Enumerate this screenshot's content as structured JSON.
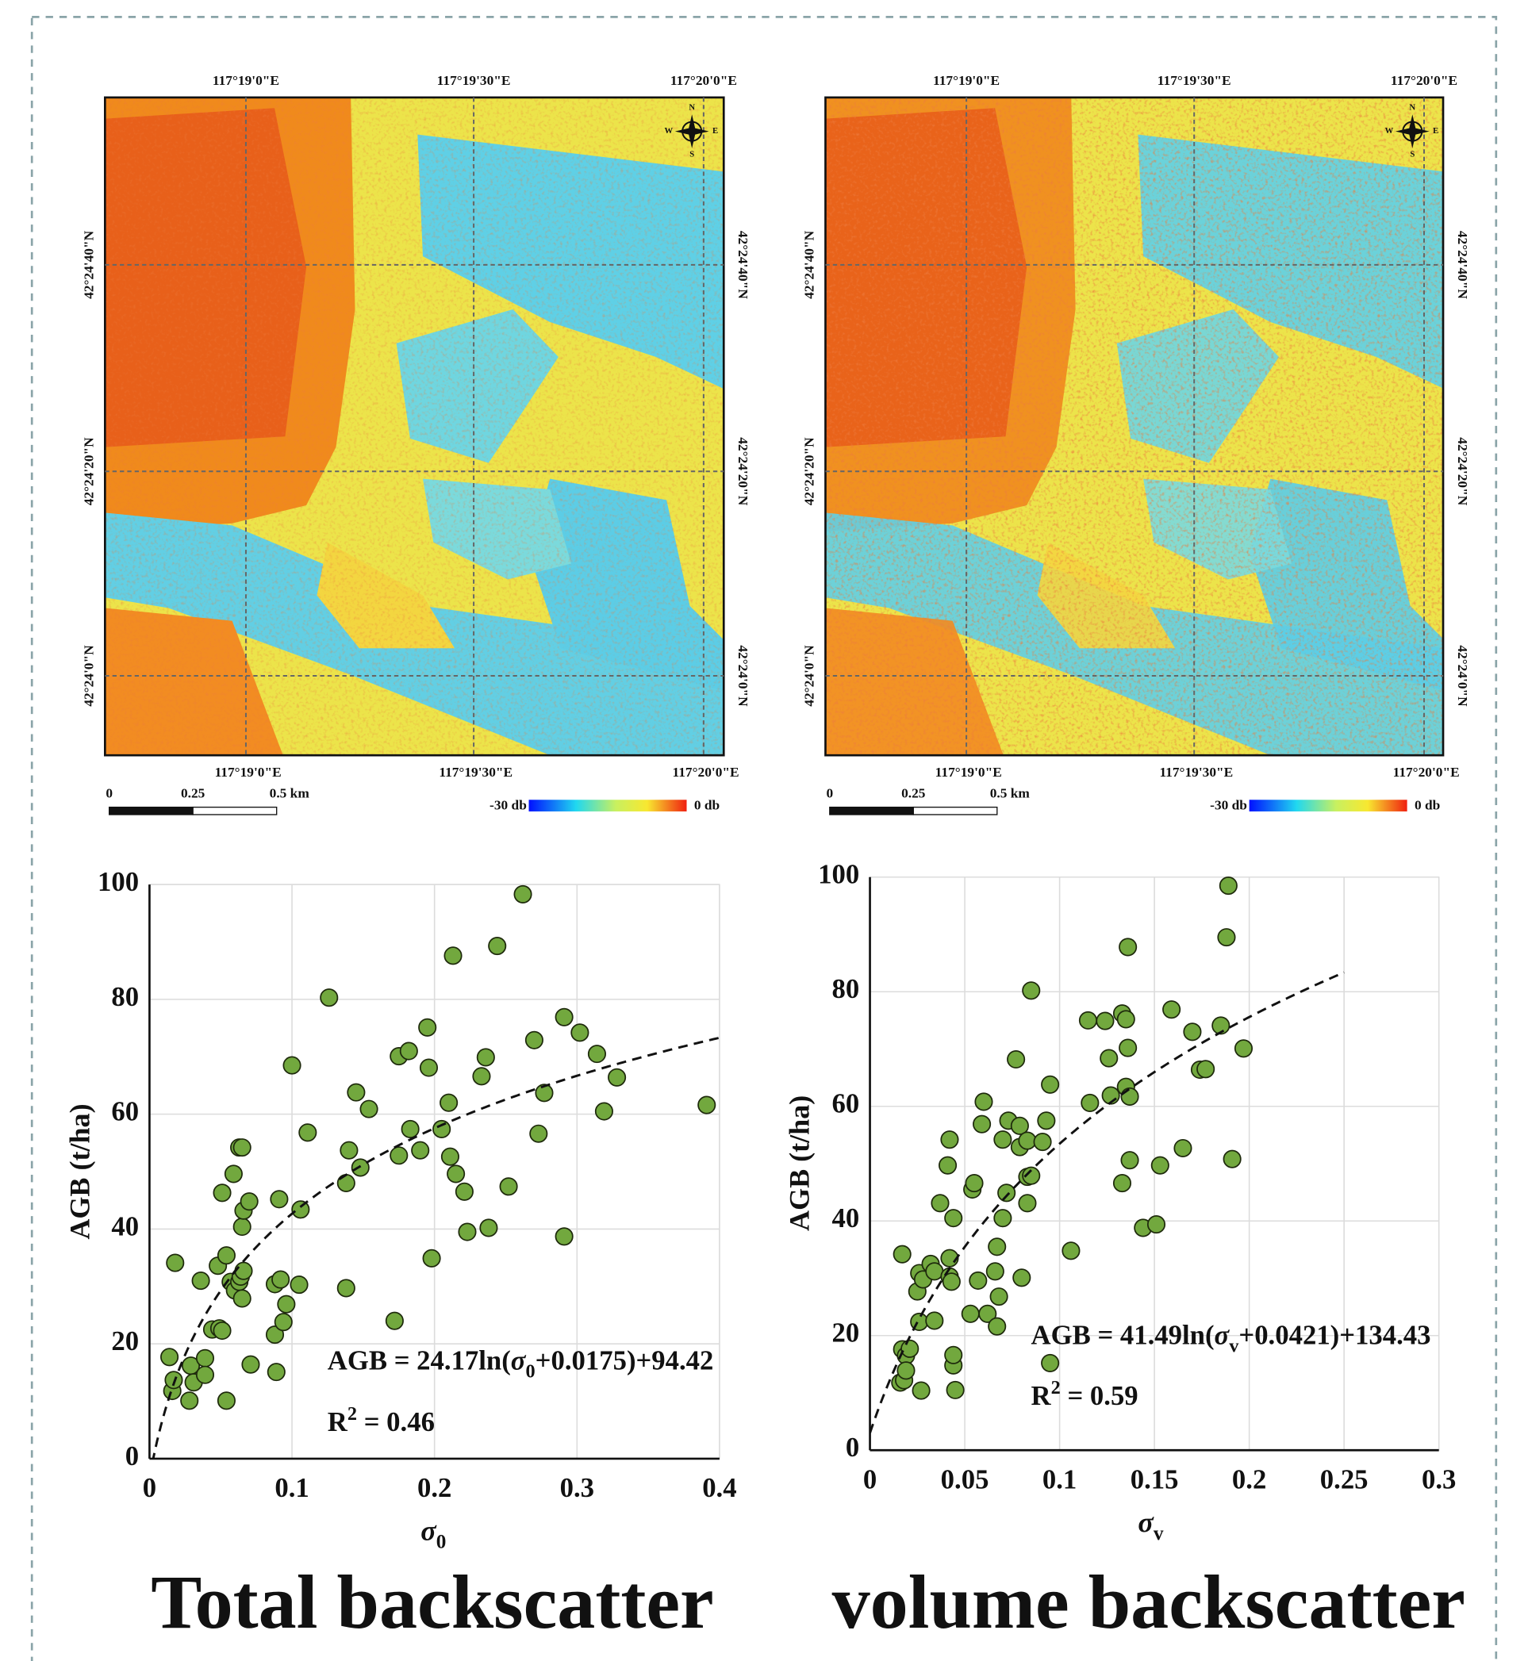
{
  "chart_data": [
    {
      "type": "scatter",
      "xlabel": [
        "σ",
        "0"
      ],
      "ylabel": "AGB (t/ha)",
      "color": "#72a83e",
      "grid": true,
      "xlim": [
        0,
        0.4
      ],
      "ylim": [
        0,
        100
      ],
      "xticks": [
        0,
        0.1,
        0.2,
        0.3,
        0.4
      ],
      "yticks": [
        0,
        20,
        40,
        60,
        80,
        100
      ],
      "fit": {
        "a": 24.17,
        "b": 0.0175,
        "c": 94.42,
        "xlim": [
          0,
          0.4
        ]
      },
      "fit_label": [
        "AGB = 24.17ln(",
        "σ",
        "0",
        "+0.0175)+94.42"
      ],
      "r2_label": [
        "R",
        "2",
        " = 0.46"
      ],
      "x": [
        0.014,
        0.016,
        0.017,
        0.018,
        0.028,
        0.029,
        0.031,
        0.036,
        0.039,
        0.039,
        0.044,
        0.048,
        0.049,
        0.051,
        0.051,
        0.054,
        0.054,
        0.057,
        0.059,
        0.06,
        0.063,
        0.063,
        0.064,
        0.065,
        0.065,
        0.065,
        0.066,
        0.066,
        0.07,
        0.071,
        0.088,
        0.088,
        0.089,
        0.091,
        0.092,
        0.094,
        0.096,
        0.1,
        0.105,
        0.106,
        0.111,
        0.126,
        0.138,
        0.138,
        0.14,
        0.145,
        0.148,
        0.154,
        0.172,
        0.175,
        0.175,
        0.182,
        0.183,
        0.19,
        0.195,
        0.196,
        0.198,
        0.205,
        0.21,
        0.211,
        0.213,
        0.215,
        0.221,
        0.223,
        0.233,
        0.236,
        0.238,
        0.244,
        0.252,
        0.262,
        0.27,
        0.273,
        0.277,
        0.291,
        0.291,
        0.302,
        0.314,
        0.319,
        0.328,
        0.391
      ],
      "values": [
        17.7,
        11.8,
        13.7,
        34.1,
        10.1,
        16.2,
        13.3,
        31.0,
        17.5,
        14.6,
        22.5,
        33.6,
        22.7,
        22.3,
        46.3,
        10.1,
        35.4,
        30.8,
        49.6,
        29.3,
        54.2,
        30.8,
        31.7,
        54.2,
        40.4,
        27.9,
        43.2,
        32.7,
        44.8,
        16.4,
        21.6,
        30.4,
        15.1,
        45.2,
        31.2,
        23.8,
        26.9,
        68.5,
        30.3,
        43.4,
        56.8,
        80.3,
        29.7,
        48.0,
        53.7,
        63.8,
        50.7,
        60.9,
        24.0,
        70.1,
        52.8,
        71.0,
        57.4,
        53.7,
        75.1,
        68.1,
        34.9,
        57.4,
        62.0,
        52.6,
        87.6,
        49.6,
        46.5,
        39.5,
        66.6,
        69.9,
        40.2,
        89.3,
        47.4,
        98.3,
        72.9,
        56.6,
        63.7,
        38.7,
        76.9,
        74.2,
        70.5,
        60.5,
        66.4,
        61.6
      ]
    },
    {
      "type": "scatter",
      "xlabel": [
        "σ",
        "v"
      ],
      "ylabel": "AGB (t/ha)",
      "color": "#72a83e",
      "grid": true,
      "xlim": [
        0,
        0.3
      ],
      "ylim": [
        0,
        100
      ],
      "xticks": [
        0,
        0.05,
        0.1,
        0.15,
        0.2,
        0.25,
        0.3
      ],
      "yticks": [
        0,
        20,
        40,
        60,
        80,
        100
      ],
      "fit": {
        "a": 41.49,
        "b": 0.0421,
        "c": 134.43,
        "xlim": [
          0,
          0.25
        ]
      },
      "fit_label": [
        "AGB = 41.49ln(",
        "σ",
        "v",
        "+0.0421)+134.43"
      ],
      "r2_label": [
        "R",
        "2",
        " = 0.59"
      ],
      "x": [
        0.016,
        0.017,
        0.017,
        0.018,
        0.019,
        0.019,
        0.021,
        0.025,
        0.026,
        0.026,
        0.027,
        0.028,
        0.032,
        0.034,
        0.034,
        0.037,
        0.041,
        0.042,
        0.042,
        0.042,
        0.043,
        0.044,
        0.044,
        0.044,
        0.045,
        0.053,
        0.054,
        0.055,
        0.057,
        0.059,
        0.06,
        0.062,
        0.066,
        0.067,
        0.067,
        0.068,
        0.07,
        0.07,
        0.072,
        0.073,
        0.077,
        0.079,
        0.079,
        0.08,
        0.083,
        0.083,
        0.083,
        0.085,
        0.085,
        0.091,
        0.093,
        0.095,
        0.095,
        0.106,
        0.115,
        0.116,
        0.124,
        0.126,
        0.127,
        0.133,
        0.133,
        0.135,
        0.135,
        0.136,
        0.137,
        0.137,
        0.136,
        0.144,
        0.151,
        0.153,
        0.159,
        0.165,
        0.17,
        0.174,
        0.177,
        0.185,
        0.188,
        0.189,
        0.191,
        0.197
      ],
      "values": [
        11.8,
        34.2,
        17.6,
        12.2,
        16.5,
        13.9,
        17.7,
        27.7,
        30.9,
        22.4,
        10.4,
        29.8,
        32.5,
        22.6,
        31.2,
        43.1,
        49.7,
        30.3,
        33.5,
        54.2,
        29.4,
        40.5,
        14.8,
        16.6,
        10.5,
        23.8,
        45.5,
        46.6,
        29.6,
        56.9,
        60.8,
        23.8,
        31.2,
        21.6,
        35.5,
        26.8,
        54.2,
        40.5,
        44.9,
        57.5,
        68.2,
        52.9,
        56.6,
        30.1,
        43.1,
        47.7,
        54.0,
        80.2,
        47.9,
        53.8,
        57.5,
        63.8,
        15.2,
        34.8,
        75.0,
        60.6,
        74.9,
        68.4,
        61.9,
        46.6,
        76.2,
        63.4,
        75.2,
        70.2,
        50.6,
        61.7,
        87.8,
        38.8,
        39.4,
        49.7,
        76.9,
        52.7,
        73.0,
        66.4,
        66.5,
        74.1,
        89.5,
        98.5,
        50.8,
        70.1
      ]
    }
  ],
  "maps": [
    {
      "lon_labels": [
        "117°19'0\"E",
        "117°19'30\"E",
        "117°20'0\"E"
      ],
      "lat_labels": [
        "42°24'40\"N",
        "42°24'20\"N",
        "42°24'0\"N"
      ],
      "scale_labels": [
        "0",
        "0.25",
        "0.5 km"
      ],
      "colorbar_labels": [
        "-30 db",
        "0 db"
      ],
      "compass": [
        "N",
        "E",
        "S",
        "W"
      ]
    },
    {
      "lon_labels": [
        "117°19'0\"E",
        "117°19'30\"E",
        "117°20'0\"E"
      ],
      "lat_labels": [
        "42°24'40\"N",
        "42°24'20\"N",
        "42°24'0\"N"
      ],
      "scale_labels": [
        "0",
        "0.25",
        "0.5 km"
      ],
      "colorbar_labels": [
        "-30 db",
        "0 db"
      ],
      "compass": [
        "N",
        "E",
        "S",
        "W"
      ]
    }
  ],
  "panel_titles": [
    "Total backscatter",
    "volume backscatter"
  ]
}
